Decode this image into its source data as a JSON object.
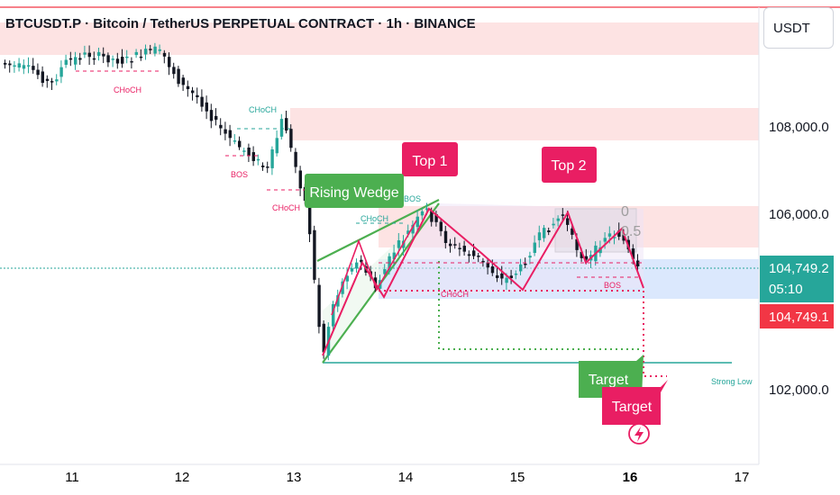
{
  "header": {
    "title": "BTCUSDT.P · Bitcoin / TetherUS PERPETUAL CONTRACT · 1h · BINANCE"
  },
  "price_scale": {
    "unit": "USDT",
    "current_price": "104,749.2",
    "countdown": "05:10",
    "secondary_price": "104,749.1"
  },
  "colors": {
    "bull": "#26a69a",
    "bear": "#131722",
    "supply_zone": "#fde3e3",
    "label_pink": "#e91e63",
    "label_green": "#4caf50",
    "demand_zone": "#dbe8fd",
    "price_tag": "#2a9d8f",
    "price_tag_red": "#f23645"
  },
  "annotations": {
    "rising_wedge": "Rising Wedge",
    "top1": "Top 1",
    "top2": "Top 2",
    "target_green": "Target",
    "target_pink": "Target",
    "strong_low": "Strong Low",
    "choch_1": "CHoCH",
    "choch_2": "CHoCH",
    "choch_3": "CHoCH",
    "choch_4": "CHoCH",
    "choch_5": "CHoCH",
    "bos_1": "BOS",
    "bos_2": "BOS",
    "bos_3": "BOS",
    "fib_0": "0",
    "fib_05": "0.5"
  },
  "chart_data": {
    "type": "candlestick",
    "x_ticks": [
      "11",
      "12",
      "13",
      "14",
      "15",
      "16",
      "17"
    ],
    "y_ticks": [
      "108,000.0",
      "106,000.0",
      "102,000.0"
    ],
    "y_range": [
      101400,
      110600
    ],
    "last_price": 104749.2,
    "grid": false
  }
}
